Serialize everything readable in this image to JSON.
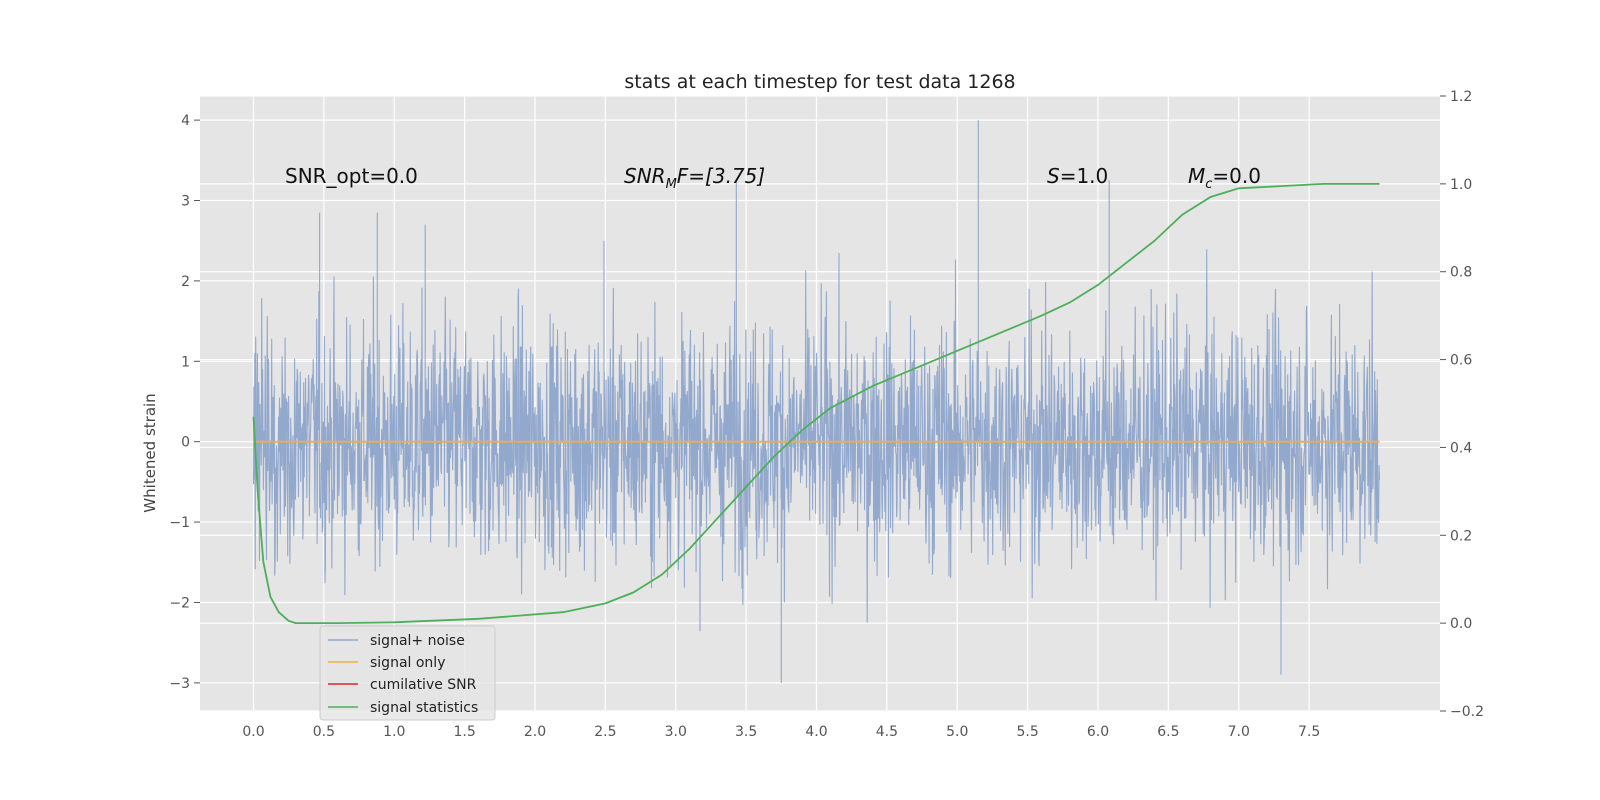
{
  "chart_data": {
    "type": "line",
    "title": "stats at each timestep for test data 1268",
    "xlabel": "",
    "ylabel": "Whitened strain",
    "y2label": "",
    "xlim": [
      -0.38,
      8.43
    ],
    "ylim": [
      -3.35,
      4.3
    ],
    "y2lim": [
      -0.2,
      1.2
    ],
    "grid": true,
    "legend_placement": "lower-left",
    "x_ticks": [
      "0.0",
      "0.5",
      "1.0",
      "1.5",
      "2.0",
      "2.5",
      "3.0",
      "3.5",
      "4.0",
      "4.5",
      "5.0",
      "5.5",
      "6.0",
      "6.5",
      "7.0",
      "7.5"
    ],
    "y_ticks": [
      "−3",
      "−2",
      "−1",
      "0",
      "1",
      "2",
      "3",
      "4"
    ],
    "y2_ticks": [
      "−0.2",
      "0.0",
      "0.2",
      "0.4",
      "0.6",
      "0.8",
      "1.0",
      "1.2"
    ],
    "annotations": {
      "snr_opt": "SNR_opt=0.0",
      "snr_mf": "SNR",
      "snr_mf_sub": "M",
      "snr_mf_rest": "F=[3.75]",
      "s_label": "S",
      "s_value": "=1.0",
      "mc_label": "M",
      "mc_sub": "c",
      "mc_value": "=0.0"
    },
    "series": [
      {
        "name": "signal+ noise",
        "color": "#92a8cd",
        "axis": "left",
        "x_range": [
          0.0,
          8.0
        ],
        "visible_range": [
          -3.0,
          4.0
        ],
        "peaks": [
          {
            "x": 0.47,
            "y": 2.85
          },
          {
            "x": 0.88,
            "y": 2.85
          },
          {
            "x": 1.22,
            "y": 2.7
          },
          {
            "x": 2.49,
            "y": 2.5
          },
          {
            "x": 3.43,
            "y": 3.25
          },
          {
            "x": 5.15,
            "y": 4.0
          },
          {
            "x": 6.08,
            "y": 3.25
          },
          {
            "x": 3.75,
            "y": -3.0
          },
          {
            "x": 7.3,
            "y": -2.9
          }
        ]
      },
      {
        "name": "signal only",
        "color": "#e8b04a",
        "axis": "left",
        "x": [
          0.0,
          8.0
        ],
        "y": [
          0.0,
          0.0
        ]
      },
      {
        "name": "cumilative SNR",
        "color": "#d62728",
        "axis": "left",
        "x": [],
        "y": []
      },
      {
        "name": "signal statistics",
        "color": "#4daf5a",
        "axis": "right",
        "x": [
          0.0,
          0.03,
          0.07,
          0.12,
          0.18,
          0.25,
          0.3,
          0.4,
          0.6,
          1.0,
          1.6,
          2.2,
          2.5,
          2.7,
          2.9,
          3.1,
          3.3,
          3.5,
          3.7,
          3.9,
          4.1,
          4.4,
          4.7,
          5.0,
          5.3,
          5.6,
          5.8,
          6.0,
          6.2,
          6.4,
          6.6,
          6.8,
          7.0,
          7.3,
          7.6,
          8.0
        ],
        "y": [
          0.47,
          0.3,
          0.14,
          0.06,
          0.025,
          0.005,
          0.0,
          0.0,
          0.0,
          0.002,
          0.01,
          0.025,
          0.045,
          0.07,
          0.11,
          0.17,
          0.24,
          0.31,
          0.38,
          0.44,
          0.49,
          0.54,
          0.58,
          0.62,
          0.66,
          0.7,
          0.73,
          0.77,
          0.82,
          0.87,
          0.93,
          0.97,
          0.99,
          0.995,
          1.0,
          1.0
        ]
      }
    ]
  }
}
